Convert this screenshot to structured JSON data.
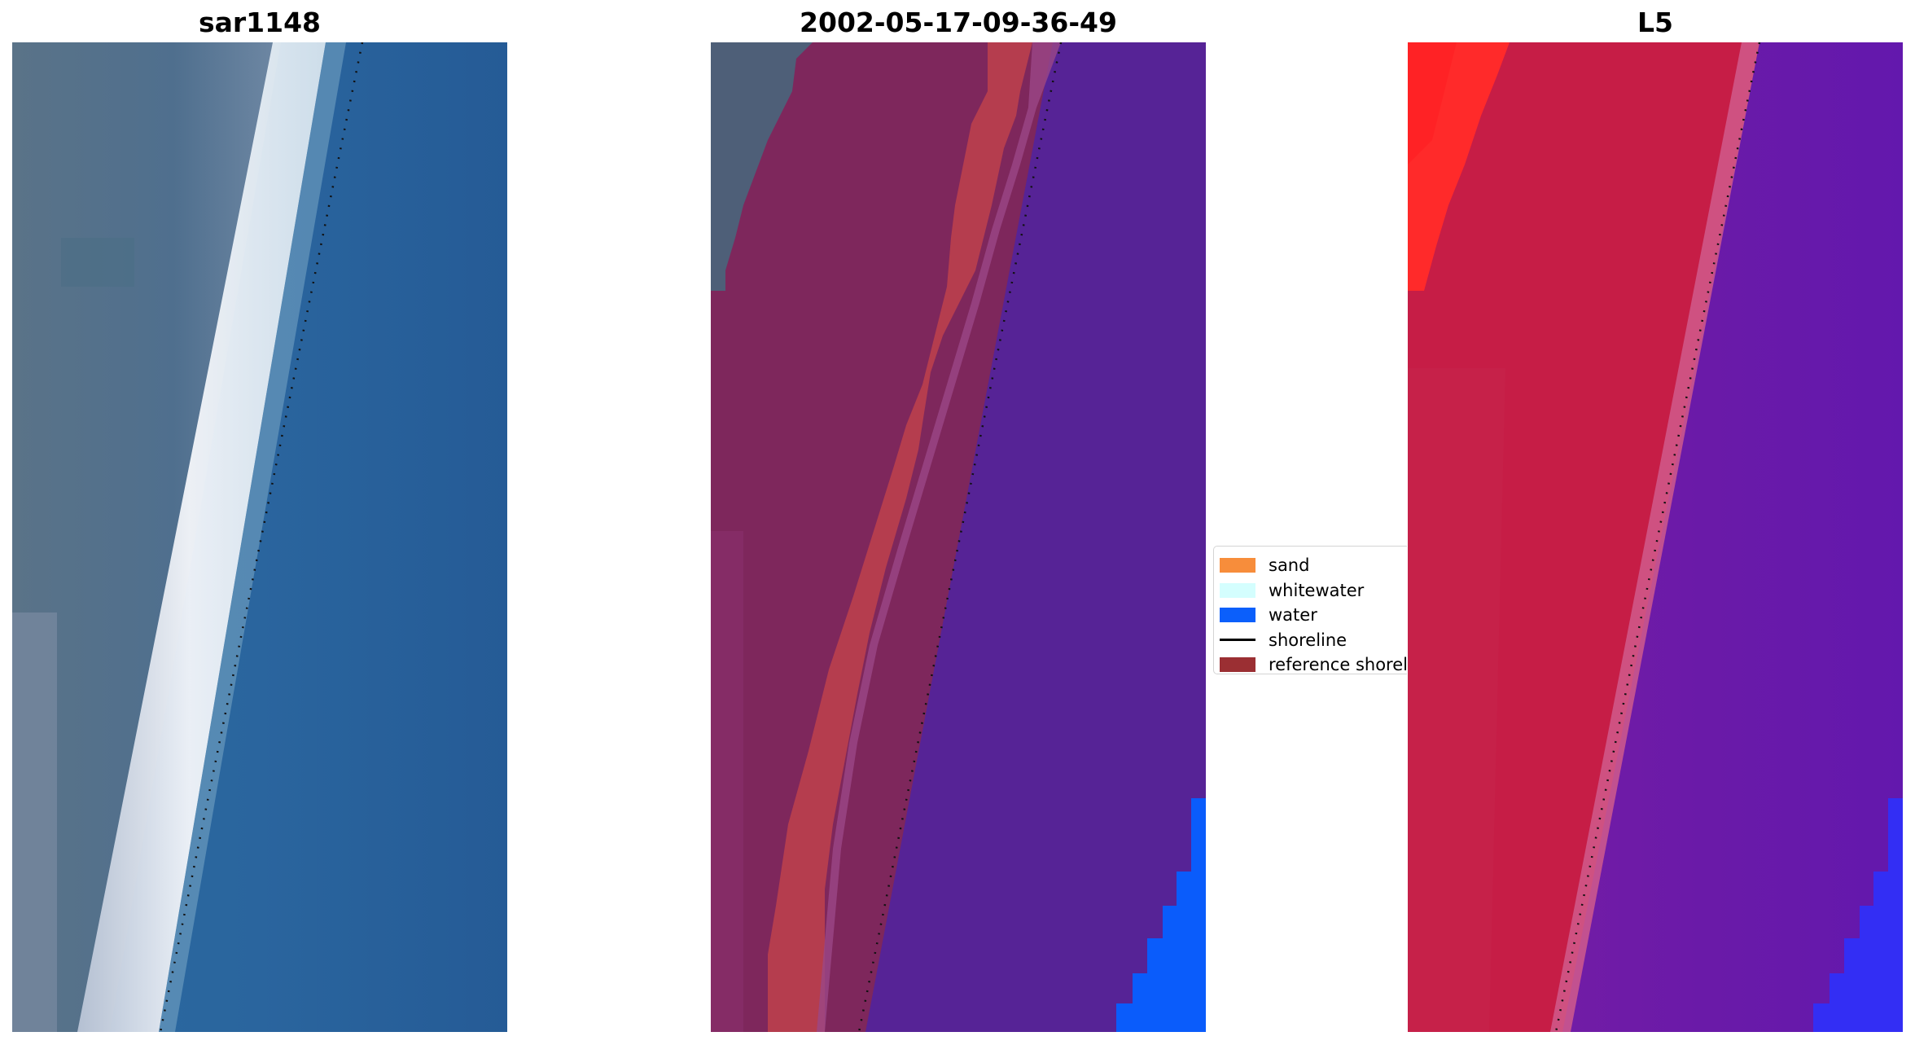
{
  "panels": [
    {
      "title": "sar1148"
    },
    {
      "title": "2002-05-17-09-36-49"
    },
    {
      "title": "L5"
    }
  ],
  "legend": {
    "items": [
      {
        "label": "sand",
        "color": "#f78d3b",
        "kind": "patch"
      },
      {
        "label": "whitewater",
        "color": "#d4fefe",
        "kind": "patch"
      },
      {
        "label": "water",
        "color": "#0b5ffb",
        "kind": "patch"
      },
      {
        "label": "shoreline",
        "color": "#000000",
        "kind": "line"
      },
      {
        "label": "reference shoreline",
        "color": "#9b2f33",
        "kind": "patch"
      }
    ]
  },
  "colors": {
    "sar_land": "#566f89",
    "sar_sea": "#28609b",
    "sar_surf": "#eef2f7",
    "class_land": "#7e275c",
    "class_sea": "#562396",
    "class_surf": "#b53d4e",
    "class_water_edge": "#0a5cfb",
    "l5_land": "#c61d46",
    "l5_sea": "#6a1aa8",
    "l5_bright": "#ff1f24",
    "l5_water_edge": "#2d31fc"
  }
}
